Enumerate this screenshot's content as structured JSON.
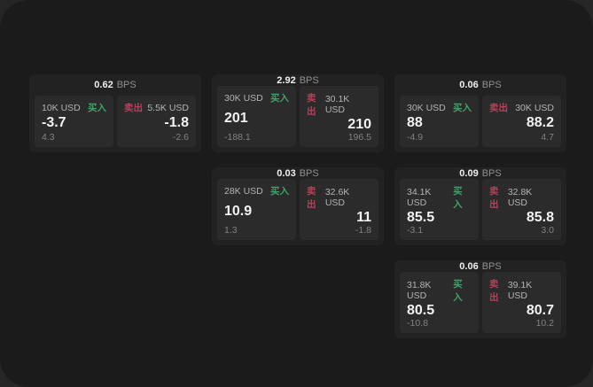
{
  "labels": {
    "bps_unit": "BPS",
    "buy": "买入",
    "sell": "卖出"
  },
  "colors": {
    "buy_accent": "#3fa369",
    "sell_accent": "#b84059",
    "window_bg": "#1b1b1b",
    "card_bg": "#222222",
    "panel_bg": "#2b2b2b"
  },
  "cards": [
    {
      "bps": "0.62",
      "buy": {
        "notional": "10K USD",
        "price": "-3.7",
        "sub": "4.3"
      },
      "sell": {
        "notional": "5.5K USD",
        "price": "-1.8",
        "sub": "-2.6"
      }
    },
    {
      "bps": "2.92",
      "buy": {
        "notional": "30K USD",
        "price": "201",
        "sub": "-188.1"
      },
      "sell": {
        "notional": "30.1K USD",
        "price": "210",
        "sub": "196.5"
      }
    },
    {
      "bps": "0.06",
      "buy": {
        "notional": "30K USD",
        "price": "88",
        "sub": "-4.9"
      },
      "sell": {
        "notional": "30K USD",
        "price": "88.2",
        "sub": "4.7"
      }
    },
    {
      "bps": "0.03",
      "buy": {
        "notional": "28K USD",
        "price": "10.9",
        "sub": "1.3"
      },
      "sell": {
        "notional": "32.6K USD",
        "price": "11",
        "sub": "-1.8"
      }
    },
    {
      "bps": "0.09",
      "buy": {
        "notional": "34.1K USD",
        "price": "85.5",
        "sub": "-3.1"
      },
      "sell": {
        "notional": "32.8K USD",
        "price": "85.8",
        "sub": "3.0"
      }
    },
    {
      "bps": "0.06",
      "buy": {
        "notional": "31.8K USD",
        "price": "80.5",
        "sub": "-10.8"
      },
      "sell": {
        "notional": "39.1K USD",
        "price": "80.7",
        "sub": "10.2"
      }
    }
  ]
}
